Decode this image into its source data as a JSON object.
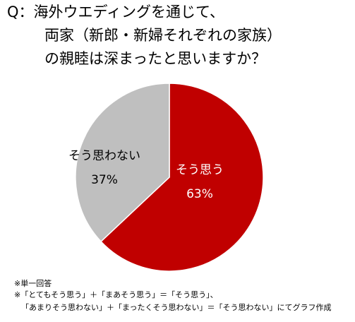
{
  "title": {
    "line1": "Q：海外ウエディングを通じて、",
    "line2": "両家（新郎・新婦それぞれの家族）",
    "line3": "の親睦は深まったと思いますか？"
  },
  "chart_data": {
    "type": "pie",
    "title": "Q：海外ウエディングを通じて、両家（新郎・新婦それぞれの家族）の親睦は深まったと思いますか？",
    "slices": [
      {
        "label": "そう思う",
        "value": 63,
        "value_label": "63%",
        "color": "#c00000",
        "text_color": "#ffffff"
      },
      {
        "label": "そう思わない",
        "value": 37,
        "value_label": "37%",
        "color": "#bfbfbf",
        "text_color": "#000000"
      }
    ],
    "start": "12 o'clock",
    "direction": "clockwise",
    "slice_border_color": "#ffffff"
  },
  "notes": {
    "line1": "※単一回答",
    "line2": "※「とてもそう思う」＋「まあそう思う」＝「そう思う」、",
    "line3": "「あまりそう思わない」＋「まったくそう思わない」＝「そう思わない」にてグラフ作成"
  }
}
